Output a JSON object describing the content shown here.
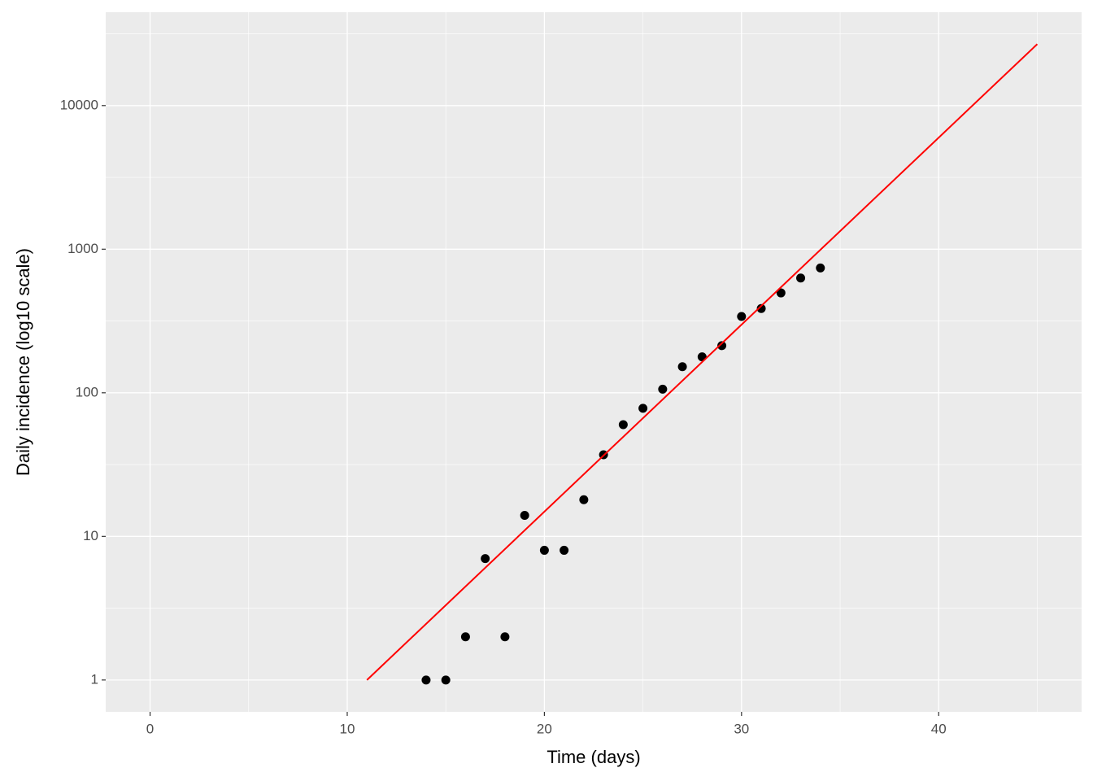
{
  "chart_data": {
    "type": "scatter",
    "x_label": "Time (days)",
    "y_label": "Daily incidence (log10 scale)",
    "xlim": [
      -2.25,
      47.25
    ],
    "ylim": [
      0.6,
      44700
    ],
    "xticks": [
      0,
      10,
      20,
      30,
      40
    ],
    "yticks": [
      1,
      10,
      100,
      1000,
      10000
    ],
    "log_y": true,
    "grid": true,
    "series": [
      {
        "type": "scatter",
        "color": "#000000",
        "x": [
          14,
          15,
          16,
          17,
          18,
          19,
          20,
          21,
          22,
          23,
          24,
          25,
          26,
          27,
          28,
          29,
          30,
          31,
          32,
          33,
          34
        ],
        "values": [
          1,
          1,
          2,
          7,
          2,
          14,
          8,
          8,
          18,
          37,
          60,
          78,
          106,
          152,
          178,
          213,
          340,
          386,
          496,
          630,
          740
        ]
      },
      {
        "type": "line",
        "color": "#ff0000",
        "x": [
          11,
          45
        ],
        "values": [
          1,
          26800
        ]
      }
    ]
  }
}
